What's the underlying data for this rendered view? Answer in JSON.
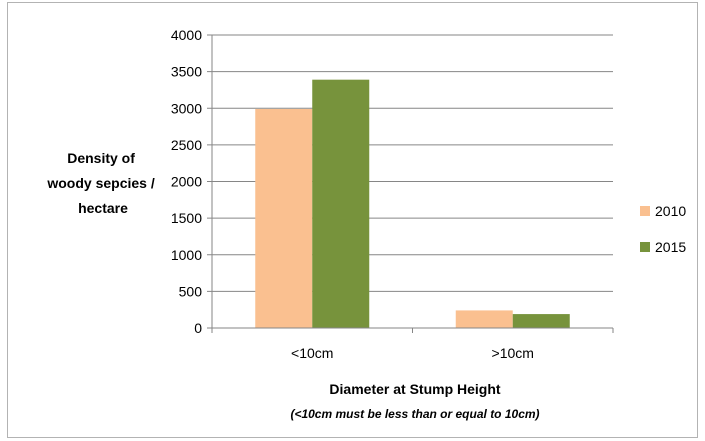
{
  "chart_data": {
    "type": "bar",
    "categories": [
      "<10cm",
      ">10cm"
    ],
    "series": [
      {
        "name": "2010",
        "values": [
          2990,
          240
        ],
        "color": "#fac090"
      },
      {
        "name": "2015",
        "values": [
          3390,
          190
        ],
        "color": "#77933c"
      }
    ],
    "ylabel_lines": [
      "Density of",
      "woody sepcies /",
      "hectare"
    ],
    "xlabel": "Diameter at Stump Height",
    "x_note": "(<10cm must be less than or equal to 10cm)",
    "ylim": [
      0,
      4000
    ],
    "yticks": [
      0,
      500,
      1000,
      1500,
      2000,
      2500,
      3000,
      3500,
      4000
    ],
    "grid": true,
    "legend_position": "right"
  }
}
